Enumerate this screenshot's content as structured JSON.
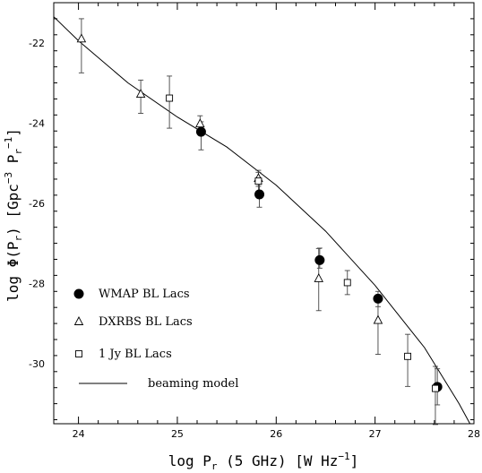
{
  "chart_data": {
    "type": "scatter",
    "xlabel": {
      "base": "log P",
      "sub": "r",
      "rest": " (5 GHz) [W Hz",
      "sup": "−1",
      "end": "]"
    },
    "ylabel": {
      "base": "log Φ(P",
      "sub": "r",
      "mid": ") [Gpc",
      "sup": "−3",
      "mid2": " P",
      "sub2": "r",
      "sup2": "−1",
      "end": "]"
    },
    "xlim": [
      23.75,
      28.0
    ],
    "ylim": [
      -31.5,
      -21.0
    ],
    "xticks": [
      "24",
      "25",
      "26",
      "27",
      "28"
    ],
    "yticks": [
      "-22",
      "-24",
      "-26",
      "-28",
      "-30"
    ],
    "legend_position": "bottom-left",
    "series": [
      {
        "name": "WMAP BL Lacs",
        "marker": "filled-circle",
        "points": [
          {
            "x": 25.24,
            "y": -24.22,
            "yerr_lo": 0.45,
            "yerr_hi": 0.25
          },
          {
            "x": 25.83,
            "y": -25.78,
            "yerr_lo": 0.32,
            "yerr_hi": 0.25
          },
          {
            "x": 26.44,
            "y": -27.42,
            "yerr_lo": 0.2,
            "yerr_hi": 0.3
          },
          {
            "x": 27.03,
            "y": -28.38,
            "yerr_lo": 0.2,
            "yerr_hi": 0.18
          },
          {
            "x": 27.63,
            "y": -30.58,
            "yerr_lo": 0.45,
            "yerr_hi": 0.45
          }
        ]
      },
      {
        "name": "DXRBS BL Lacs",
        "marker": "open-triangle",
        "points": [
          {
            "x": 24.03,
            "y": -21.9,
            "yerr_lo": 0.85,
            "yerr_hi": 0.5
          },
          {
            "x": 24.63,
            "y": -23.28,
            "yerr_lo": 0.48,
            "yerr_hi": 0.35
          },
          {
            "x": 25.23,
            "y": -24.02,
            "yerr_lo": 0.2,
            "yerr_hi": 0.2
          },
          {
            "x": 25.82,
            "y": -25.38,
            "yerr_lo": 0.2,
            "yerr_hi": 0.2
          },
          {
            "x": 26.43,
            "y": -27.88,
            "yerr_lo": 0.8,
            "yerr_hi": 0.75
          },
          {
            "x": 27.03,
            "y": -28.92,
            "yerr_lo": 0.85,
            "yerr_hi": 0.58
          }
        ]
      },
      {
        "name": "1 Jy BL Lacs",
        "marker": "open-square",
        "points": [
          {
            "x": 24.92,
            "y": -23.38,
            "yerr_lo": 0.75,
            "yerr_hi": 0.55
          },
          {
            "x": 25.82,
            "y": -25.45,
            "yerr_lo": 0.25,
            "yerr_hi": 0.22
          },
          {
            "x": 26.72,
            "y": -27.98,
            "yerr_lo": 0.3,
            "yerr_hi": 0.3
          },
          {
            "x": 27.33,
            "y": -29.82,
            "yerr_lo": 0.75,
            "yerr_hi": 0.55
          },
          {
            "x": 27.61,
            "y": -30.62,
            "yerr_lo": 0.9,
            "yerr_hi": 0.55
          }
        ]
      },
      {
        "name": "beaming model",
        "marker": "line",
        "points": [
          {
            "x": 23.75,
            "y": -21.35
          },
          {
            "x": 24.0,
            "y": -21.95
          },
          {
            "x": 24.5,
            "y": -23.0
          },
          {
            "x": 25.0,
            "y": -23.85
          },
          {
            "x": 25.5,
            "y": -24.6
          },
          {
            "x": 26.0,
            "y": -25.55
          },
          {
            "x": 26.5,
            "y": -26.7
          },
          {
            "x": 27.0,
            "y": -28.05
          },
          {
            "x": 27.5,
            "y": -29.6
          },
          {
            "x": 27.85,
            "y": -31.0
          },
          {
            "x": 27.96,
            "y": -31.5
          }
        ]
      }
    ]
  }
}
